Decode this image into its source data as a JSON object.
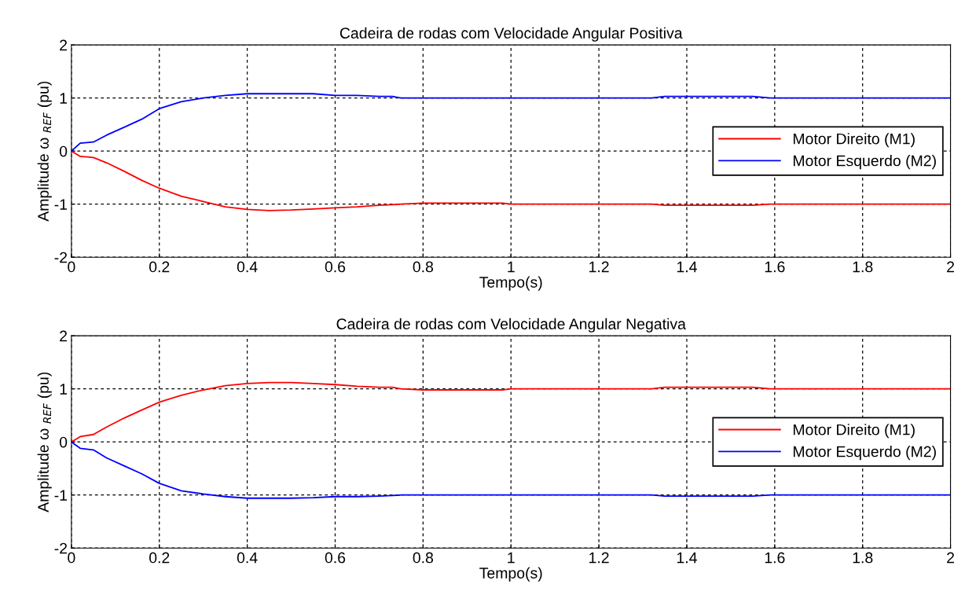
{
  "chart_data": [
    {
      "type": "line",
      "title": "Cadeira de rodas com Velocidade Angular Positiva",
      "xlabel": "Tempo(s)",
      "ylabel": "Amplitude ω $_{REF}$ (pu)",
      "xlim": [
        0,
        2
      ],
      "ylim": [
        -2,
        2
      ],
      "xticks": [
        0,
        0.2,
        0.4,
        0.6,
        0.8,
        1,
        1.2,
        1.4,
        1.6,
        1.8,
        2
      ],
      "yticks": [
        -2,
        -1,
        0,
        1,
        2
      ],
      "grid": true,
      "legend": "right",
      "line_style": "solid",
      "x": [
        0,
        0.02,
        0.05,
        0.08,
        0.12,
        0.16,
        0.2,
        0.25,
        0.3,
        0.35,
        0.4,
        0.45,
        0.5,
        0.55,
        0.6,
        0.65,
        0.7,
        0.73,
        0.75,
        0.8,
        0.98,
        1.0,
        1.32,
        1.35,
        1.55,
        1.59,
        2
      ],
      "series": [
        {
          "name": "Motor Direito (M1)",
          "color": "#ff0000",
          "values": [
            0,
            -0.1,
            -0.12,
            -0.22,
            -0.38,
            -0.55,
            -0.7,
            -0.85,
            -0.95,
            -1.05,
            -1.1,
            -1.12,
            -1.11,
            -1.09,
            -1.07,
            -1.05,
            -1.02,
            -1.01,
            -1.0,
            -0.98,
            -0.98,
            -1.0,
            -1.0,
            -1.02,
            -1.02,
            -1.0,
            -1.0
          ]
        },
        {
          "name": "Motor Esquerdo (M2)",
          "color": "#0000ff",
          "values": [
            0,
            0.15,
            0.17,
            0.3,
            0.45,
            0.6,
            0.8,
            0.93,
            1.0,
            1.05,
            1.08,
            1.08,
            1.08,
            1.08,
            1.05,
            1.05,
            1.03,
            1.03,
            1.0,
            1.0,
            1.0,
            1.0,
            1.0,
            1.03,
            1.03,
            1.0,
            1.0
          ]
        }
      ]
    },
    {
      "type": "line",
      "title": "Cadeira de rodas com Velocidade Angular Negativa",
      "xlabel": "Tempo(s)",
      "ylabel": "Amplitude ω $_{REF}$ (pu)",
      "xlim": [
        0,
        2
      ],
      "ylim": [
        -2,
        2
      ],
      "xticks": [
        0,
        0.2,
        0.4,
        0.6,
        0.8,
        1,
        1.2,
        1.4,
        1.6,
        1.8,
        2
      ],
      "yticks": [
        -2,
        -1,
        0,
        1,
        2
      ],
      "grid": true,
      "legend": "right",
      "line_style": "solid",
      "x": [
        0,
        0.02,
        0.05,
        0.08,
        0.12,
        0.16,
        0.2,
        0.25,
        0.3,
        0.35,
        0.4,
        0.45,
        0.5,
        0.55,
        0.6,
        0.65,
        0.7,
        0.73,
        0.75,
        0.8,
        0.98,
        1.0,
        1.32,
        1.35,
        1.55,
        1.59,
        2
      ],
      "series": [
        {
          "name": "Motor Direito (M1)",
          "color": "#ff0000",
          "values": [
            0,
            0.1,
            0.14,
            0.28,
            0.45,
            0.6,
            0.75,
            0.88,
            0.98,
            1.06,
            1.1,
            1.12,
            1.12,
            1.1,
            1.08,
            1.05,
            1.03,
            1.03,
            1.0,
            0.98,
            0.98,
            1.0,
            1.0,
            1.03,
            1.03,
            1.0,
            1.0
          ]
        },
        {
          "name": "Motor Esquerdo (M2)",
          "color": "#0000ff",
          "values": [
            0,
            -0.12,
            -0.15,
            -0.3,
            -0.45,
            -0.6,
            -0.78,
            -0.92,
            -0.98,
            -1.03,
            -1.06,
            -1.06,
            -1.06,
            -1.05,
            -1.03,
            -1.03,
            -1.02,
            -1.01,
            -1.0,
            -1.0,
            -1.0,
            -1.0,
            -1.0,
            -1.02,
            -1.02,
            -1.0,
            -1.0
          ]
        }
      ]
    }
  ]
}
